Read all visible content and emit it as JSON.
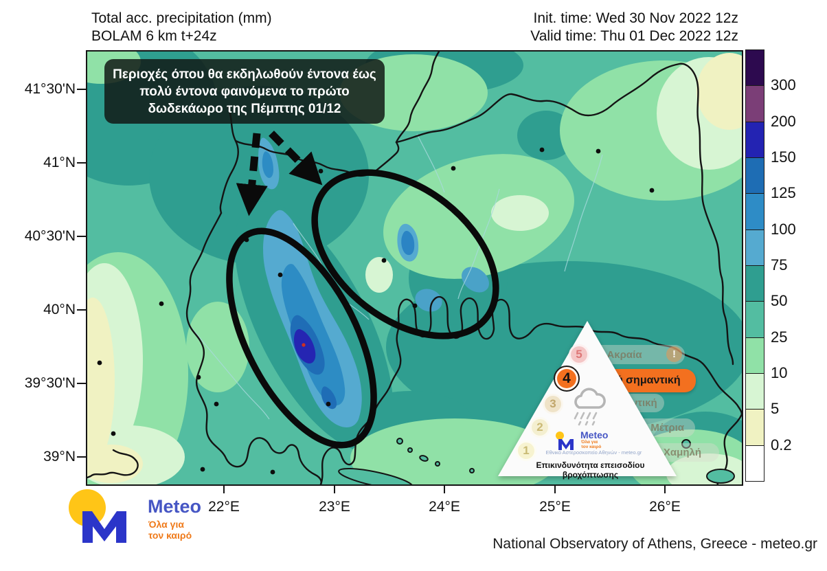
{
  "header": {
    "title_line1": "Total acc. precipitation (mm)",
    "title_line2": "BOLAM 6 km t+24z",
    "init_time": "Init. time: Wed 30 Nov 2022 12z",
    "valid_time": "Valid time: Thu 01 Dec 2022 12z"
  },
  "annotation": {
    "text": "Περιοχές όπου θα εκδηλωθούν έντονα έως πολύ έντονα φαινόμενα το πρώτο δωδεκάωρο της Πέμπτης  01/12"
  },
  "axes": {
    "lat_labels": [
      "41°30'N",
      "41°N",
      "40°30'N",
      "40°N",
      "39°30'N",
      "39°N"
    ],
    "lon_labels": [
      "22°E",
      "23°E",
      "24°E",
      "25°E",
      "26°E"
    ]
  },
  "colorbar": {
    "labels": [
      "300",
      "200",
      "150",
      "125",
      "100",
      "75",
      "50",
      "25",
      "10",
      "5",
      "0.2"
    ],
    "colors_top_to_bottom": [
      "#2d0a4f",
      "#7b3e77",
      "#2323b2",
      "#1e6db4",
      "#2e8cc6",
      "#55aad0",
      "#2f9e90",
      "#53bda1",
      "#90e1a7",
      "#d7f5d3",
      "#f0f2c2",
      "#ffffff"
    ]
  },
  "warning": {
    "title": "Επικινδυνότητα επεισοδίου βροχόπτωσης",
    "active_level": "4",
    "accent_color": "#f3701f",
    "levels": [
      {
        "num": "5",
        "label": "Ακραία",
        "badge": "!"
      },
      {
        "num": "4",
        "label": "Πολύ σημαντική"
      },
      {
        "num": "3",
        "label": "Σημαντική"
      },
      {
        "num": "2",
        "label": "Μέτρια"
      },
      {
        "num": "1",
        "label": "Χαμηλή"
      }
    ],
    "logo": {
      "name": "Meteo",
      "tagline1": "Όλα για",
      "tagline2": "τον καιρό",
      "org": "Εθνικό Αστεροσκοπείο Αθηνών - meteo.gr"
    }
  },
  "logo": {
    "name": "Meteo",
    "tagline1": "Όλα για",
    "tagline2": "τον καιρό",
    "dot_color": "#ffc517",
    "m_color": "#2b35c9"
  },
  "footer": {
    "credit": "National Observatory of Athens, Greece - meteo.gr"
  },
  "chart_data": {
    "type": "map",
    "title": "Total acc. precipitation (mm)",
    "model": "BOLAM 6 km t+24z",
    "init_time": "Wed 30 Nov 2022 12z",
    "valid_time": "Thu 01 Dec 2022 12z",
    "lat_ticks": [
      "41°30'N",
      "41°N",
      "40°30'N",
      "40°N",
      "39°30'N",
      "39°N"
    ],
    "lon_ticks": [
      "22°E",
      "23°E",
      "24°E",
      "25°E",
      "26°E"
    ],
    "colorbar_levels_mm": [
      0.2,
      5,
      10,
      25,
      50,
      75,
      100,
      125,
      150,
      200,
      300
    ],
    "legend_position": "right",
    "max_marker_color": "#d03020",
    "highlighted_regions": 2
  }
}
